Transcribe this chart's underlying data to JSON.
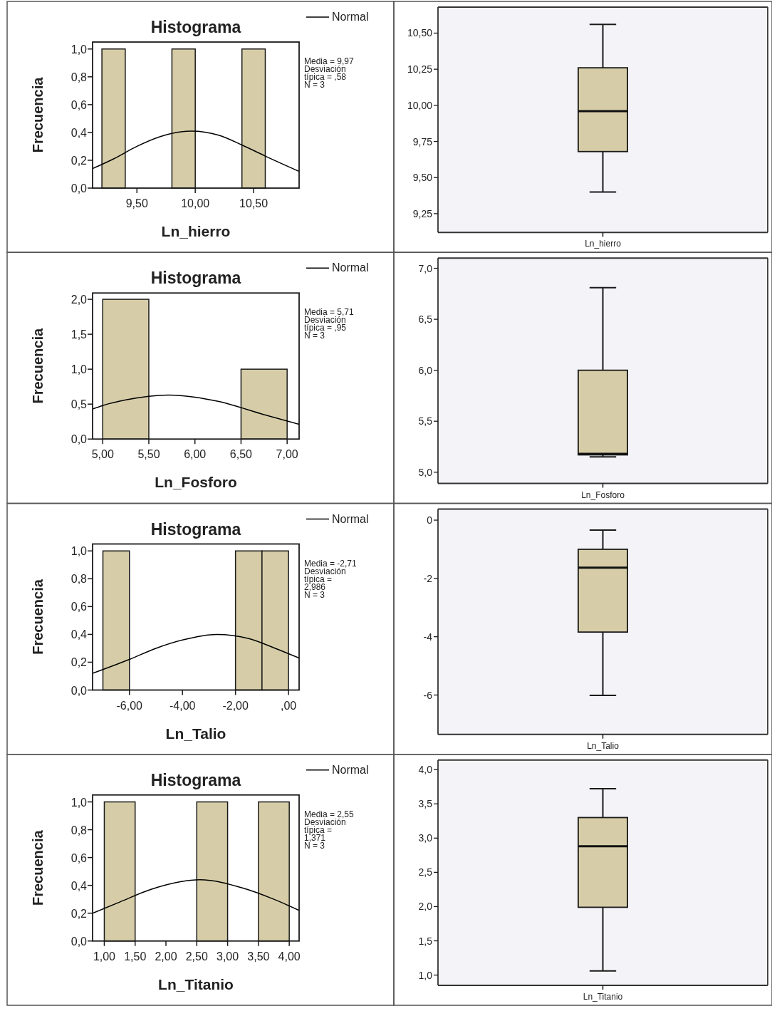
{
  "chart_data": [
    {
      "type": "histogram",
      "title": "Histograma",
      "xlabel": "Ln_hierro",
      "ylabel": "Frecuencia",
      "legend": "top right",
      "xlim": [
        9.12,
        10.89
      ],
      "xticks": [
        {
          "value": 9.5,
          "label": "9,50"
        },
        {
          "value": 10,
          "label": "10,00"
        },
        {
          "value": 10.5,
          "label": "10,50"
        }
      ],
      "ylim": [
        0,
        1.05
      ],
      "yticks": [
        {
          "value": 0,
          "label": "0,0"
        },
        {
          "value": 0.2,
          "label": "0,2"
        },
        {
          "value": 0.4,
          "label": "0,4"
        },
        {
          "value": 0.6,
          "label": "0,6"
        },
        {
          "value": 0.8,
          "label": "0,8"
        },
        {
          "value": 1,
          "label": "1,0"
        }
      ],
      "annotations": [
        "Media = 9,97",
        "Desviación típica = ,58",
        "N = 3"
      ],
      "series": [
        {
          "type": "histogram",
          "color": "#d6cda8",
          "bins": [
            9.2,
            9.4,
            9.6,
            9.8,
            10.0,
            10.2,
            10.4,
            10.6
          ],
          "values": [
            1,
            0,
            0,
            1,
            0,
            0,
            1
          ]
        },
        {
          "type": "line",
          "name": "Normal",
          "color": "#000000",
          "x": [
            9.12,
            9.3,
            9.5,
            9.7,
            9.97,
            10.2,
            10.4,
            10.6,
            10.89
          ],
          "values": [
            0.14,
            0.21,
            0.3,
            0.37,
            0.41,
            0.38,
            0.31,
            0.23,
            0.12
          ]
        }
      ]
    },
    {
      "type": "box",
      "categories": [
        "Ln_hierro"
      ],
      "color": "#d6cda8",
      "ylim": [
        9.12,
        10.68
      ],
      "yticks": [
        {
          "value": 9.25,
          "label": "9,25"
        },
        {
          "value": 9.5,
          "label": "9,50"
        },
        {
          "value": 9.75,
          "label": "9,75"
        },
        {
          "value": 10,
          "label": "10,00"
        },
        {
          "value": 10.25,
          "label": "10,25"
        },
        {
          "value": 10.5,
          "label": "10,50"
        }
      ],
      "boxes": [
        {
          "low": 9.4,
          "q1": 9.68,
          "median": 9.96,
          "q3": 10.26,
          "high": 10.56
        }
      ]
    },
    {
      "type": "histogram",
      "title": "Histograma",
      "xlabel": "Ln_Fosforo",
      "ylabel": "Frecuencia",
      "legend": "top right",
      "xlim": [
        4.89,
        7.13
      ],
      "xticks": [
        {
          "value": 5,
          "label": "5,00"
        },
        {
          "value": 5.5,
          "label": "5,50"
        },
        {
          "value": 6,
          "label": "6,00"
        },
        {
          "value": 6.5,
          "label": "6,50"
        },
        {
          "value": 7,
          "label": "7,00"
        }
      ],
      "ylim": [
        0,
        2.09
      ],
      "yticks": [
        {
          "value": 0,
          "label": "0,0"
        },
        {
          "value": 0.5,
          "label": "0,5"
        },
        {
          "value": 1,
          "label": "1,0"
        },
        {
          "value": 1.5,
          "label": "1,5"
        },
        {
          "value": 2,
          "label": "2,0"
        }
      ],
      "annotations": [
        "Media = 5,71",
        "Desviación típica = ,95",
        "N = 3"
      ],
      "series": [
        {
          "type": "histogram",
          "color": "#d6cda8",
          "bins": [
            5.0,
            5.5,
            6.0,
            6.5,
            7.0
          ],
          "values": [
            2,
            0,
            0,
            1
          ]
        },
        {
          "type": "line",
          "name": "Normal",
          "color": "#000000",
          "x": [
            4.89,
            5.0,
            5.25,
            5.71,
            6.0,
            6.25,
            6.75,
            7.13
          ],
          "values": [
            0.43,
            0.48,
            0.56,
            0.63,
            0.6,
            0.54,
            0.35,
            0.21
          ]
        }
      ]
    },
    {
      "type": "box",
      "categories": [
        "Ln_Fosforo"
      ],
      "color": "#d6cda8",
      "ylim": [
        4.89,
        7.1
      ],
      "yticks": [
        {
          "value": 5,
          "label": "5,0"
        },
        {
          "value": 5.5,
          "label": "5,5"
        },
        {
          "value": 6,
          "label": "6,0"
        },
        {
          "value": 6.5,
          "label": "6,5"
        },
        {
          "value": 7,
          "label": "7,0"
        }
      ],
      "boxes": [
        {
          "low": 5.15,
          "q1": 5.17,
          "median": 5.18,
          "q3": 6.0,
          "high": 6.81
        }
      ]
    },
    {
      "type": "histogram",
      "title": "Histograma",
      "xlabel": "Ln_Talio",
      "ylabel": "Frecuencia",
      "legend": "top right",
      "xlim": [
        -7.39,
        0.4
      ],
      "xticks": [
        {
          "value": -6,
          "label": "-6,00"
        },
        {
          "value": -4,
          "label": "-4,00"
        },
        {
          "value": -2,
          "label": "-2,00"
        },
        {
          "value": 0,
          "label": ",00"
        }
      ],
      "ylim": [
        0,
        1.05
      ],
      "yticks": [
        {
          "value": 0,
          "label": "0,0"
        },
        {
          "value": 0.2,
          "label": "0,2"
        },
        {
          "value": 0.4,
          "label": "0,4"
        },
        {
          "value": 0.6,
          "label": "0,6"
        },
        {
          "value": 0.8,
          "label": "0,8"
        },
        {
          "value": 1,
          "label": "1,0"
        }
      ],
      "annotations": [
        "Media = -2,71",
        "Desviación típica = 2,986",
        "N = 3"
      ],
      "series": [
        {
          "type": "histogram",
          "color": "#d6cda8",
          "bins": [
            -7,
            -6,
            -5,
            -4,
            -3,
            -2,
            -1,
            0
          ],
          "values": [
            1,
            0,
            0,
            0,
            0,
            1,
            1
          ]
        },
        {
          "type": "line",
          "name": "Normal",
          "color": "#000000",
          "x": [
            -7.39,
            -6,
            -5,
            -4,
            -2.71,
            -1.5,
            -0.5,
            0.4
          ],
          "values": [
            0.12,
            0.22,
            0.3,
            0.36,
            0.4,
            0.37,
            0.3,
            0.23
          ]
        }
      ]
    },
    {
      "type": "box",
      "categories": [
        "Ln_Talio"
      ],
      "color": "#d6cda8",
      "ylim": [
        -7.35,
        0.38
      ],
      "yticks": [
        -6,
        -4,
        -2,
        0
      ],
      "boxes": [
        {
          "low": -6.01,
          "q1": -3.84,
          "median": -1.63,
          "q3": -1.0,
          "high": -0.34
        }
      ]
    },
    {
      "type": "histogram",
      "title": "Histograma",
      "xlabel": "Ln_Titanio",
      "ylabel": "Frecuencia",
      "legend": "top right",
      "xlim": [
        0.81,
        4.16
      ],
      "xticks": [
        {
          "value": 1,
          "label": "1,00"
        },
        {
          "value": 1.5,
          "label": "1,50"
        },
        {
          "value": 2,
          "label": "2,00"
        },
        {
          "value": 2.5,
          "label": "2,50"
        },
        {
          "value": 3,
          "label": "3,00"
        },
        {
          "value": 3.5,
          "label": "3,50"
        },
        {
          "value": 4,
          "label": "4,00"
        }
      ],
      "ylim": [
        0,
        1.05
      ],
      "yticks": [
        {
          "value": 0,
          "label": "0,0"
        },
        {
          "value": 0.2,
          "label": "0,2"
        },
        {
          "value": 0.4,
          "label": "0,4"
        },
        {
          "value": 0.6,
          "label": "0,6"
        },
        {
          "value": 0.8,
          "label": "0,8"
        },
        {
          "value": 1,
          "label": "1,0"
        }
      ],
      "annotations": [
        "Media = 2,55",
        "Desviación típica = 1,371",
        "N = 3"
      ],
      "series": [
        {
          "type": "histogram",
          "color": "#d6cda8",
          "bins": [
            1.0,
            1.5,
            2.0,
            2.5,
            3.0,
            3.5,
            4.0
          ],
          "values": [
            1,
            0,
            0,
            1,
            0,
            1
          ]
        },
        {
          "type": "line",
          "name": "Normal",
          "color": "#000000",
          "x": [
            0.81,
            1.25,
            1.75,
            2.55,
            3.25,
            3.75,
            4.16
          ],
          "values": [
            0.2,
            0.28,
            0.37,
            0.44,
            0.38,
            0.3,
            0.22
          ]
        }
      ]
    },
    {
      "type": "box",
      "categories": [
        "Ln_Titanio"
      ],
      "color": "#d6cda8",
      "ylim": [
        0.85,
        4.14
      ],
      "yticks": [
        {
          "value": 1,
          "label": "1,0"
        },
        {
          "value": 1.5,
          "label": "1,5"
        },
        {
          "value": 2,
          "label": "2,0"
        },
        {
          "value": 2.5,
          "label": "2,5"
        },
        {
          "value": 3,
          "label": "3,0"
        },
        {
          "value": 3.5,
          "label": "3,5"
        },
        {
          "value": 4,
          "label": "4,0"
        }
      ],
      "boxes": [
        {
          "low": 1.06,
          "q1": 1.99,
          "median": 2.88,
          "q3": 3.3,
          "high": 3.72
        }
      ]
    }
  ]
}
